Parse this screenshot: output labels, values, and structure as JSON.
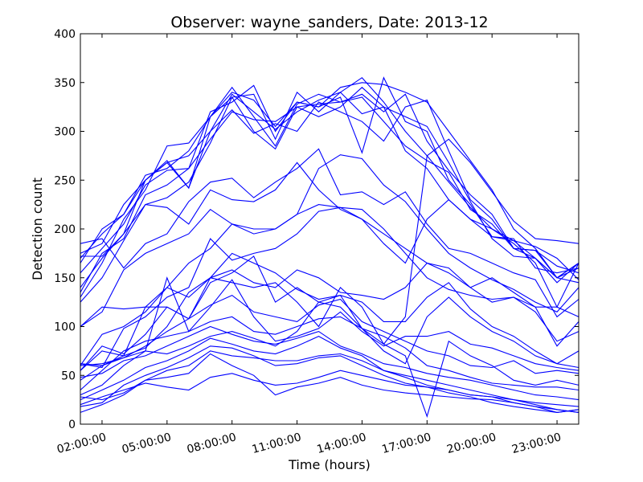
{
  "chart_data": {
    "type": "line",
    "title": "Observer: wayne_sanders, Date: 2013-12",
    "xlabel": "Time (hours)",
    "ylabel": "Detection count",
    "xlim": [
      1,
      24
    ],
    "ylim": [
      0,
      400
    ],
    "grid": false,
    "legend": "none",
    "line_color": "#0000ff",
    "x_ticks": [
      2,
      5,
      8,
      11,
      14,
      17,
      20,
      23
    ],
    "x_tick_labels": [
      "02:00:00",
      "05:00:00",
      "08:00:00",
      "11:00:00",
      "14:00:00",
      "17:00:00",
      "20:00:00",
      "23:00:00"
    ],
    "y_ticks": [
      0,
      50,
      100,
      150,
      200,
      250,
      300,
      350,
      400
    ],
    "y_tick_labels": [
      "0",
      "50",
      "100",
      "150",
      "200",
      "250",
      "300",
      "350",
      "400"
    ],
    "x": [
      1,
      2,
      3,
      4,
      5,
      6,
      7,
      8,
      9,
      10,
      11,
      12,
      13,
      14,
      15,
      16,
      17,
      18,
      19,
      20,
      21,
      22,
      23,
      24
    ],
    "series": [
      {
        "values": [
          170,
          195,
          215,
          255,
          262,
          280,
          315,
          340,
          332,
          305,
          330,
          325,
          345,
          350,
          348,
          340,
          330,
          300,
          270,
          240,
          200,
          180,
          150,
          160
        ]
      },
      {
        "values": [
          175,
          185,
          225,
          250,
          268,
          275,
          300,
          338,
          320,
          302,
          320,
          332,
          340,
          355,
          330,
          300,
          275,
          248,
          222,
          200,
          188,
          182,
          170,
          148
        ]
      },
      {
        "values": [
          130,
          165,
          210,
          240,
          285,
          288,
          315,
          345,
          315,
          285,
          328,
          338,
          330,
          338,
          320,
          338,
          290,
          260,
          235,
          215,
          180,
          178,
          150,
          165
        ]
      },
      {
        "values": [
          155,
          180,
          205,
          245,
          260,
          262,
          320,
          330,
          347,
          300,
          330,
          325,
          335,
          278,
          355,
          310,
          300,
          250,
          225,
          192,
          190,
          160,
          155,
          160
        ]
      },
      {
        "values": [
          165,
          200,
          215,
          250,
          270,
          242,
          300,
          322,
          298,
          308,
          300,
          330,
          320,
          310,
          290,
          325,
          332,
          280,
          230,
          210,
          180,
          170,
          150,
          165
        ]
      },
      {
        "values": [
          135,
          175,
          190,
          235,
          245,
          262,
          292,
          320,
          312,
          310,
          325,
          315,
          325,
          345,
          325,
          315,
          305,
          268,
          228,
          190,
          172,
          170,
          150,
          145
        ]
      },
      {
        "values": [
          125,
          150,
          188,
          225,
          232,
          248,
          288,
          335,
          300,
          282,
          325,
          328,
          330,
          335,
          310,
          285,
          270,
          258,
          220,
          205,
          180,
          178,
          162,
          155
        ]
      },
      {
        "values": [
          172,
          172,
          195,
          250,
          268,
          242,
          315,
          335,
          338,
          292,
          340,
          320,
          340,
          318,
          325,
          280,
          262,
          230,
          210,
          192,
          188,
          170,
          145,
          165
        ]
      },
      {
        "values": [
          185,
          190,
          160,
          185,
          195,
          228,
          248,
          252,
          232,
          248,
          262,
          282,
          235,
          238,
          225,
          238,
          205,
          180,
          175,
          165,
          155,
          148,
          110,
          128
        ]
      },
      {
        "values": [
          140,
          170,
          195,
          225,
          222,
          205,
          240,
          230,
          228,
          240,
          268,
          240,
          220,
          210,
          185,
          165,
          210,
          230,
          210,
          200,
          185,
          165,
          120,
          165
        ]
      },
      {
        "values": [
          100,
          115,
          158,
          175,
          185,
          195,
          220,
          205,
          195,
          200,
          215,
          262,
          276,
          272,
          245,
          228,
          200,
          175,
          160,
          148,
          138,
          125,
          115,
          140
        ]
      },
      {
        "values": [
          62,
          60,
          70,
          120,
          120,
          108,
          150,
          145,
          140,
          145,
          125,
          100,
          140,
          120,
          82,
          110,
          275,
          292,
          268,
          238,
          208,
          190,
          188,
          185
        ]
      },
      {
        "values": [
          100,
          120,
          118,
          120,
          140,
          165,
          180,
          205,
          200,
          200,
          215,
          225,
          222,
          220,
          200,
          175,
          150,
          138,
          132,
          128,
          130,
          120,
          120,
          110
        ]
      },
      {
        "values": [
          62,
          58,
          98,
          110,
          130,
          140,
          190,
          168,
          175,
          180,
          195,
          218,
          222,
          210,
          195,
          180,
          165,
          155,
          140,
          125,
          130,
          115,
          85,
          95
        ]
      },
      {
        "values": [
          55,
          75,
          70,
          78,
          100,
          135,
          150,
          158,
          145,
          140,
          158,
          150,
          135,
          132,
          128,
          140,
          165,
          160,
          140,
          150,
          135,
          120,
          80,
          105
        ]
      },
      {
        "values": [
          60,
          92,
          100,
          115,
          140,
          130,
          150,
          175,
          165,
          155,
          138,
          128,
          132,
          125,
          105,
          105,
          130,
          145,
          118,
          100,
          90,
          75,
          62,
          75
        ]
      },
      {
        "values": [
          55,
          80,
          72,
          92,
          120,
          108,
          145,
          155,
          172,
          125,
          140,
          125,
          132,
          98,
          75,
          62,
          110,
          130,
          110,
          95,
          85,
          70,
          62,
          58
        ]
      },
      {
        "values": [
          30,
          40,
          60,
          75,
          150,
          95,
          120,
          148,
          110,
          85,
          90,
          98,
          115,
          95,
          80,
          90,
          90,
          95,
          82,
          78,
          70,
          62,
          58,
          55
        ]
      },
      {
        "values": [
          45,
          60,
          68,
          80,
          95,
          108,
          122,
          132,
          115,
          110,
          105,
          122,
          128,
          105,
          95,
          85,
          75,
          70,
          60,
          58,
          65,
          52,
          55,
          52
        ]
      },
      {
        "values": [
          35,
          55,
          75,
          85,
          90,
          95,
          105,
          110,
          95,
          92,
          100,
          108,
          110,
          98,
          90,
          78,
          60,
          55,
          48,
          42,
          40,
          38,
          38,
          35
        ]
      },
      {
        "values": [
          60,
          62,
          68,
          75,
          72,
          80,
          90,
          95,
          88,
          80,
          95,
          125,
          120,
          98,
          82,
          70,
          8,
          85,
          70,
          60,
          45,
          40,
          45,
          40
        ]
      },
      {
        "values": [
          25,
          35,
          45,
          58,
          65,
          75,
          88,
          82,
          75,
          72,
          80,
          90,
          78,
          70,
          55,
          48,
          40,
          35,
          30,
          28,
          25,
          22,
          20,
          18
        ]
      },
      {
        "values": [
          12,
          20,
          30,
          45,
          55,
          60,
          75,
          70,
          68,
          65,
          65,
          70,
          72,
          65,
          55,
          50,
          45,
          40,
          35,
          30,
          25,
          20,
          15,
          12
        ]
      },
      {
        "values": [
          28,
          25,
          32,
          45,
          48,
          52,
          72,
          60,
          50,
          30,
          38,
          42,
          48,
          40,
          35,
          32,
          30,
          28,
          26,
          25,
          22,
          18,
          15,
          12
        ]
      },
      {
        "values": [
          18,
          22,
          40,
          50,
          58,
          68,
          80,
          78,
          70,
          60,
          62,
          68,
          70,
          60,
          50,
          42,
          38,
          35,
          30,
          28,
          22,
          18,
          12,
          15
        ]
      },
      {
        "values": [
          48,
          52,
          65,
          70,
          80,
          90,
          100,
          92,
          85,
          82,
          88,
          95,
          80,
          72,
          62,
          58,
          52,
          48,
          45,
          40,
          35,
          30,
          28,
          25
        ]
      },
      {
        "values": [
          20,
          28,
          35,
          42,
          38,
          35,
          48,
          52,
          45,
          40,
          42,
          48,
          55,
          50,
          45,
          40,
          38,
          32,
          28,
          22,
          18,
          15,
          12,
          15
        ]
      }
    ]
  }
}
